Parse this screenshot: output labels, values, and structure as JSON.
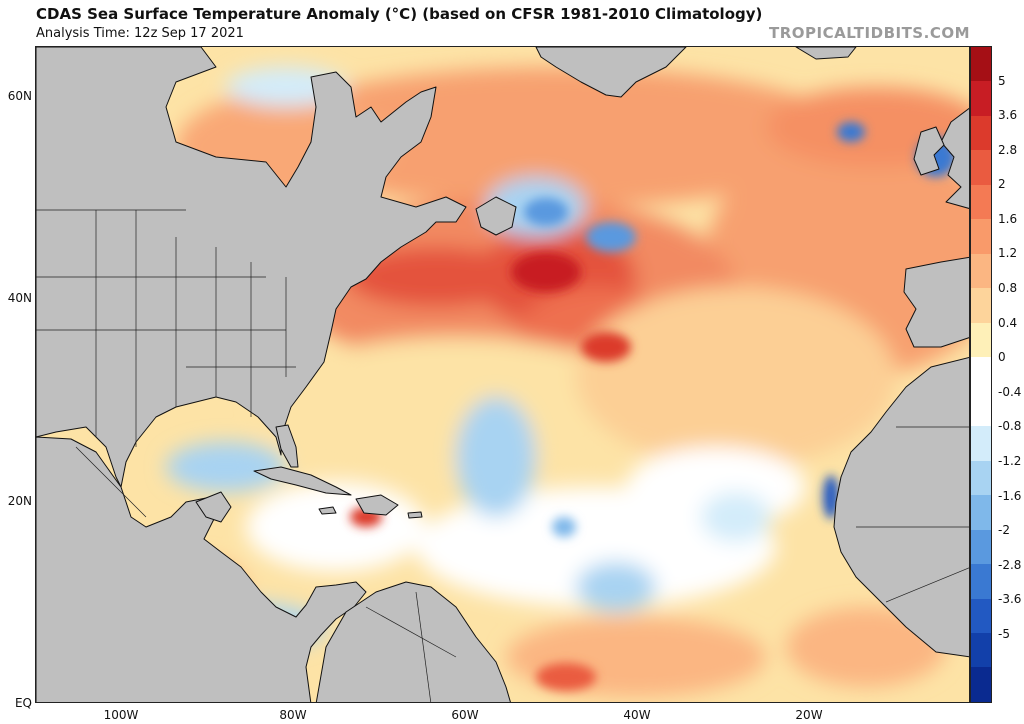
{
  "header": {
    "title": "CDAS Sea Surface Temperature Anomaly (°C) (based on CFSR 1981-2010 Climatology)",
    "analysis_time": "Analysis Time: 12z Sep 17 2021",
    "credit": "TROPICALTIDBITS.COM"
  },
  "map": {
    "region": "North Atlantic",
    "lat_ticks": [
      "60N",
      "40N",
      "20N",
      "EQ"
    ],
    "lon_ticks": [
      "100W",
      "80W",
      "60W",
      "40W",
      "20W"
    ],
    "land_color": "#bfbfbf",
    "coast_color": "#111111"
  },
  "colorbar": {
    "labels": [
      "5",
      "3.6",
      "2.8",
      "2",
      "1.6",
      "1.2",
      "0.8",
      "0.4",
      "0",
      "-0.4",
      "-0.8",
      "-1.2",
      "-1.6",
      "-2",
      "-2.8",
      "-3.6",
      "-5"
    ],
    "colors": [
      "#a50f15",
      "#c81d24",
      "#dc3a2c",
      "#ea5b40",
      "#f47a54",
      "#f99a6a",
      "#fbb682",
      "#fdd49b",
      "#fef0b8",
      "#ffffff",
      "#ffffff",
      "#d3ecfa",
      "#a8d3f2",
      "#7fb8ea",
      "#5a99df",
      "#3a79d2",
      "#2259c2",
      "#1240aa",
      "#0a2a90"
    ]
  }
}
